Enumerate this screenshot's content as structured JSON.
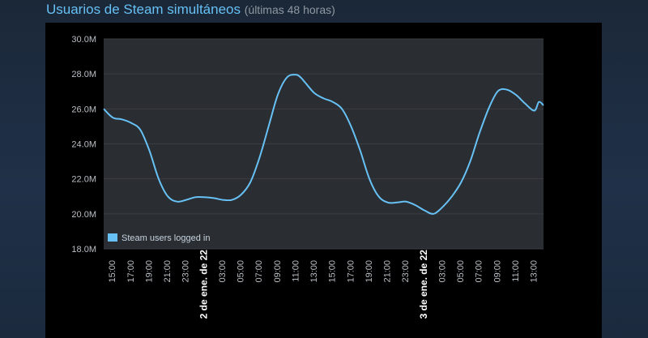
{
  "header": {
    "title": "Usuarios de Steam simultáneos",
    "subtitle": "(últimas 48 horas)"
  },
  "colors": {
    "line": "#67c1f5",
    "plot_bg": "#2a2d31",
    "grid": "#3a3e44",
    "title": "#66c0f4"
  },
  "chart_data": {
    "type": "line",
    "title": "",
    "xlabel": "",
    "ylabel": "",
    "ylim": [
      18,
      30
    ],
    "y_unit_suffix": "M",
    "y_ticks": [
      18,
      20,
      22,
      24,
      26,
      28,
      30
    ],
    "y_tick_labels": [
      "18.0M",
      "20.0M",
      "22.0M",
      "24.0M",
      "26.0M",
      "28.0M",
      "30.0M"
    ],
    "x_range": [
      14,
      62
    ],
    "x_ticks": [
      15,
      17,
      19,
      21,
      23,
      25,
      27,
      29,
      31,
      33,
      35,
      37,
      39,
      41,
      43,
      45,
      47,
      49,
      51,
      53,
      55,
      57,
      59,
      61
    ],
    "x_tick_labels": [
      "15:00",
      "17:00",
      "19:00",
      "21:00",
      "23:00",
      "2 de ene. de 22",
      "03:00",
      "05:00",
      "07:00",
      "09:00",
      "11:00",
      "13:00",
      "15:00",
      "17:00",
      "19:00",
      "21:00",
      "23:00",
      "3 de ene. de 22",
      "03:00",
      "05:00",
      "07:00",
      "09:00",
      "11:00",
      "13:00"
    ],
    "date_tick_indices": [
      5,
      17
    ],
    "grid": true,
    "legend": "bottom-left",
    "series": [
      {
        "name": "Steam users logged in",
        "x": [
          14,
          15,
          16,
          17,
          18,
          19,
          20,
          21,
          22,
          23,
          24,
          25,
          26,
          27,
          28,
          29,
          30,
          31,
          32,
          33,
          34,
          35,
          35.5,
          36,
          37,
          38,
          39,
          40,
          41,
          42,
          43,
          44,
          45,
          46,
          47,
          48,
          49,
          50,
          51,
          52,
          53,
          54,
          55,
          56,
          57,
          58,
          59,
          60,
          61,
          61.5,
          62
        ],
        "y": [
          26.0,
          25.5,
          25.4,
          25.2,
          24.8,
          23.6,
          22.0,
          21.0,
          20.7,
          20.8,
          20.95,
          20.95,
          20.9,
          20.8,
          20.8,
          21.1,
          21.8,
          23.2,
          25.0,
          26.8,
          27.8,
          27.95,
          27.8,
          27.5,
          26.9,
          26.6,
          26.4,
          26.0,
          25.0,
          23.6,
          22.0,
          21.0,
          20.65,
          20.65,
          20.7,
          20.5,
          20.2,
          20.0,
          20.4,
          21.0,
          21.8,
          23.0,
          24.6,
          26.0,
          27.0,
          27.1,
          26.8,
          26.3,
          25.9,
          26.4,
          26.2
        ]
      }
    ]
  }
}
